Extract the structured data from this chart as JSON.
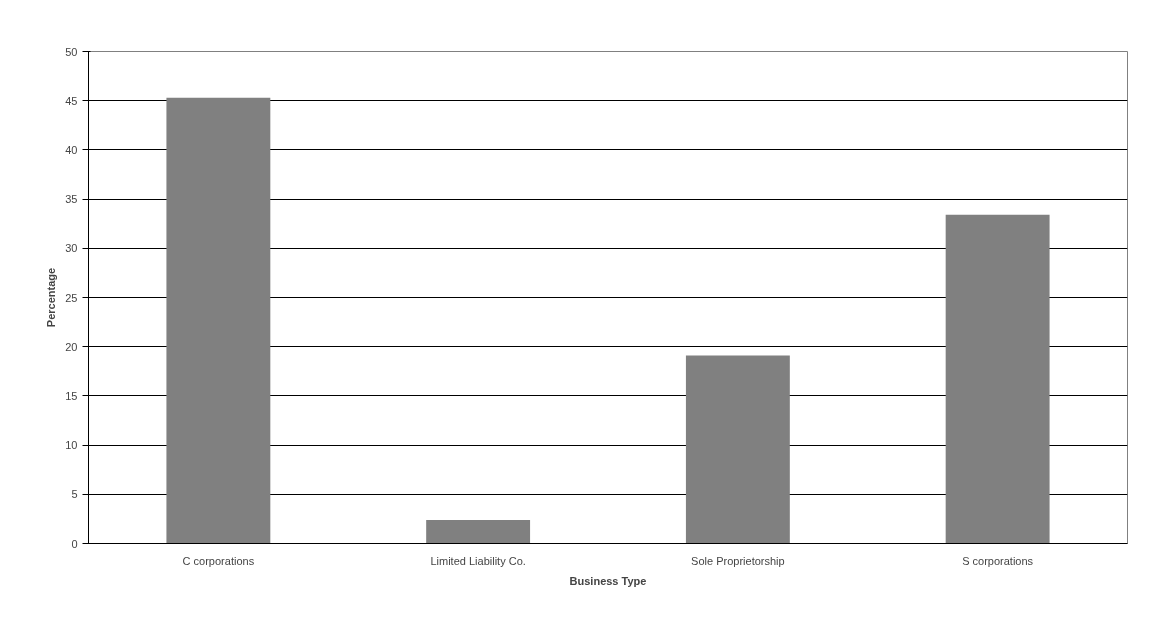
{
  "chart_data": {
    "type": "bar",
    "xlabel": "Business Type",
    "ylabel": "Percentage",
    "categories": [
      "C corporations",
      "Limited Liability Co.",
      "Sole Proprietorship",
      "S corporations"
    ],
    "values": [
      45.3,
      2.4,
      19.1,
      33.4
    ],
    "color": "#808080",
    "ylim": [
      0,
      50
    ],
    "yticks": [
      0,
      5,
      10,
      15,
      20,
      25,
      30,
      35,
      40,
      45,
      50
    ],
    "grid": "y"
  }
}
